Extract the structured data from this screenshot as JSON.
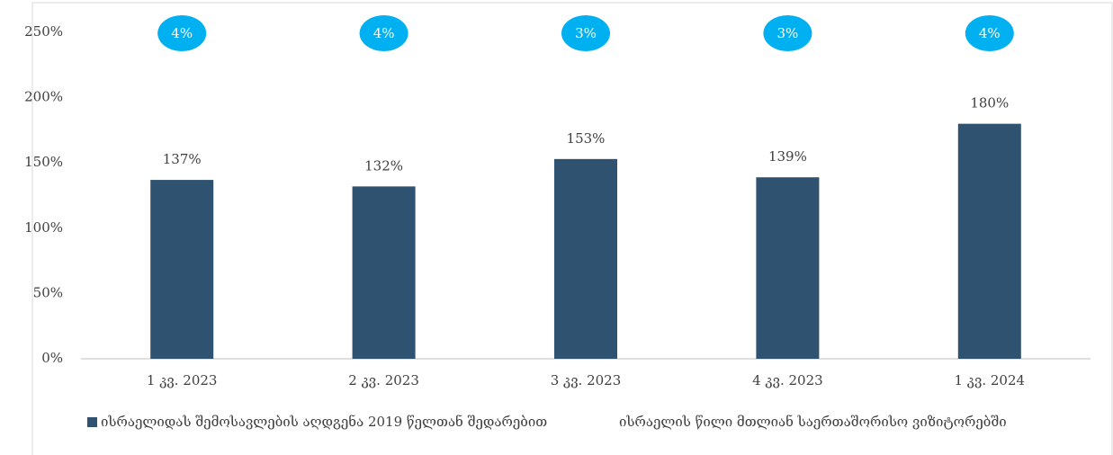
{
  "chart_data": {
    "type": "bar",
    "categories": [
      "1 კვ. 2023",
      "2 კვ. 2023",
      "3 კვ. 2023",
      "4 კვ. 2023",
      "1 კვ. 2024"
    ],
    "series": [
      {
        "name": "ისრაელიდას შემოსავლების აღდგენა 2019 წელთან შედარებით",
        "color": "#2e5270",
        "values": [
          137,
          132,
          153,
          139,
          180
        ],
        "value_labels": [
          "137%",
          "132%",
          "153%",
          "139%",
          "180%"
        ]
      },
      {
        "name": "ისრაელის წილი მთლიან საერთაშორისო ვიზიტორებში",
        "color": "#00b0f0",
        "values": [
          4,
          4,
          3,
          3,
          4
        ],
        "value_labels": [
          "4%",
          "4%",
          "3%",
          "3%",
          "4%"
        ]
      }
    ],
    "ylim": [
      0,
      250
    ],
    "yticks": [
      {
        "value": 0,
        "label": "0%"
      },
      {
        "value": 50,
        "label": "50%"
      },
      {
        "value": 100,
        "label": "100%"
      },
      {
        "value": 150,
        "label": "150%"
      },
      {
        "value": 200,
        "label": "200%"
      },
      {
        "value": 250,
        "label": "250%"
      }
    ]
  }
}
